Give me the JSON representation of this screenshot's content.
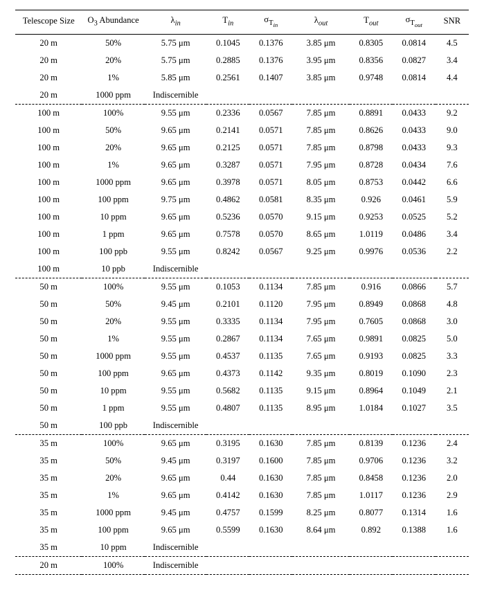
{
  "table": {
    "background_color": "#ffffff",
    "text_color": "#000000",
    "font_family": "Times New Roman",
    "font_size_pt": 10,
    "border_color": "#000000",
    "dashed_separator": true,
    "columns": [
      {
        "key": "tel",
        "label": "Telescope Size"
      },
      {
        "key": "o3",
        "label_html": "O<sub>3</sub> Abundance"
      },
      {
        "key": "lin",
        "label_html": "λ<sub><i>in</i></sub>"
      },
      {
        "key": "tin",
        "label_html": "T<sub><i>in</i></sub>"
      },
      {
        "key": "stin",
        "label_html": "σ<sub>T<sub><i>in</i></sub></sub>"
      },
      {
        "key": "lout",
        "label_html": "λ<sub><i>out</i></sub>"
      },
      {
        "key": "tout",
        "label_html": "T<sub><i>out</i></sub>"
      },
      {
        "key": "stout",
        "label_html": "σ<sub>T<sub><i>out</i></sub></sub>"
      },
      {
        "key": "snr",
        "label": "SNR"
      }
    ],
    "groups": [
      {
        "rows": [
          {
            "tel": "20 m",
            "o3": "50%",
            "lin": "5.75 μm",
            "tin": "0.1045",
            "stin": "0.1376",
            "lout": "3.85 μm",
            "tout": "0.8305",
            "stout": "0.0814",
            "snr": "4.5"
          },
          {
            "tel": "20 m",
            "o3": "20%",
            "lin": "5.75 μm",
            "tin": "0.2885",
            "stin": "0.1376",
            "lout": "3.95 μm",
            "tout": "0.8356",
            "stout": "0.0827",
            "snr": "3.4"
          },
          {
            "tel": "20 m",
            "o3": "1%",
            "lin": "5.85 μm",
            "tin": "0.2561",
            "stin": "0.1407",
            "lout": "3.85 μm",
            "tout": "0.9748",
            "stout": "0.0814",
            "snr": "4.4"
          },
          {
            "tel": "20 m",
            "o3": "1000 ppm",
            "lin": "Indiscernible",
            "tin": "",
            "stin": "",
            "lout": "",
            "tout": "",
            "stout": "",
            "snr": ""
          }
        ]
      },
      {
        "rows": [
          {
            "tel": "100 m",
            "o3": "100%",
            "lin": "9.55 μm",
            "tin": "0.2336",
            "stin": "0.0567",
            "lout": "7.85 μm",
            "tout": "0.8891",
            "stout": "0.0433",
            "snr": "9.2"
          },
          {
            "tel": "100 m",
            "o3": "50%",
            "lin": "9.65 μm",
            "tin": "0.2141",
            "stin": "0.0571",
            "lout": "7.85 μm",
            "tout": "0.8626",
            "stout": "0.0433",
            "snr": "9.0"
          },
          {
            "tel": "100 m",
            "o3": "20%",
            "lin": "9.65 μm",
            "tin": "0.2125",
            "stin": "0.0571",
            "lout": "7.85 μm",
            "tout": "0.8798",
            "stout": "0.0433",
            "snr": "9.3"
          },
          {
            "tel": "100 m",
            "o3": "1%",
            "lin": "9.65 μm",
            "tin": "0.3287",
            "stin": "0.0571",
            "lout": "7.95 μm",
            "tout": "0.8728",
            "stout": "0.0434",
            "snr": "7.6"
          },
          {
            "tel": "100 m",
            "o3": "1000 ppm",
            "lin": "9.65 μm",
            "tin": "0.3978",
            "stin": "0.0571",
            "lout": "8.05 μm",
            "tout": "0.8753",
            "stout": "0.0442",
            "snr": "6.6"
          },
          {
            "tel": "100 m",
            "o3": "100 ppm",
            "lin": "9.75 μm",
            "tin": "0.4862",
            "stin": "0.0581",
            "lout": "8.35 μm",
            "tout": "0.926",
            "stout": "0.0461",
            "snr": "5.9"
          },
          {
            "tel": "100 m",
            "o3": "10 ppm",
            "lin": "9.65 μm",
            "tin": "0.5236",
            "stin": "0.0570",
            "lout": "9.15 μm",
            "tout": "0.9253",
            "stout": "0.0525",
            "snr": "5.2"
          },
          {
            "tel": "100 m",
            "o3": "1 ppm",
            "lin": "9.65 μm",
            "tin": "0.7578",
            "stin": "0.0570",
            "lout": "8.65 μm",
            "tout": "1.0119",
            "stout": "0.0486",
            "snr": "3.4"
          },
          {
            "tel": "100 m",
            "o3": "100 ppb",
            "lin": "9.55 μm",
            "tin": "0.8242",
            "stin": "0.0567",
            "lout": "9.25 μm",
            "tout": "0.9976",
            "stout": "0.0536",
            "snr": "2.2"
          },
          {
            "tel": "100 m",
            "o3": "10 ppb",
            "lin": "Indiscernible",
            "tin": "",
            "stin": "",
            "lout": "",
            "tout": "",
            "stout": "",
            "snr": ""
          }
        ]
      },
      {
        "rows": [
          {
            "tel": "50 m",
            "o3": "100%",
            "lin": "9.55 μm",
            "tin": "0.1053",
            "stin": "0.1134",
            "lout": "7.85 μm",
            "tout": "0.916",
            "stout": "0.0866",
            "snr": "5.7"
          },
          {
            "tel": "50 m",
            "o3": "50%",
            "lin": "9.45 μm",
            "tin": "0.2101",
            "stin": "0.1120",
            "lout": "7.95 μm",
            "tout": "0.8949",
            "stout": "0.0868",
            "snr": "4.8"
          },
          {
            "tel": "50 m",
            "o3": "20%",
            "lin": "9.55 μm",
            "tin": "0.3335",
            "stin": "0.1134",
            "lout": "7.95 μm",
            "tout": "0.7605",
            "stout": "0.0868",
            "snr": "3.0"
          },
          {
            "tel": "50 m",
            "o3": "1%",
            "lin": "9.55 μm",
            "tin": "0.2867",
            "stin": "0.1134",
            "lout": "7.65 μm",
            "tout": "0.9891",
            "stout": "0.0825",
            "snr": "5.0"
          },
          {
            "tel": "50 m",
            "o3": "1000 ppm",
            "lin": "9.55 μm",
            "tin": "0.4537",
            "stin": "0.1135",
            "lout": "7.65 μm",
            "tout": "0.9193",
            "stout": "0.0825",
            "snr": "3.3"
          },
          {
            "tel": "50 m",
            "o3": "100 ppm",
            "lin": "9.65 μm",
            "tin": "0.4373",
            "stin": "0.1142",
            "lout": "9.35 μm",
            "tout": "0.8019",
            "stout": "0.1090",
            "snr": "2.3"
          },
          {
            "tel": "50 m",
            "o3": "10 ppm",
            "lin": "9.55 μm",
            "tin": "0.5682",
            "stin": "0.1135",
            "lout": "9.15 μm",
            "tout": "0.8964",
            "stout": "0.1049",
            "snr": "2.1"
          },
          {
            "tel": "50 m",
            "o3": "1 ppm",
            "lin": "9.55 μm",
            "tin": "0.4807",
            "stin": "0.1135",
            "lout": "8.95 μm",
            "tout": "1.0184",
            "stout": "0.1027",
            "snr": "3.5"
          },
          {
            "tel": "50 m",
            "o3": "100 ppb",
            "lin": "Indiscernible",
            "tin": "",
            "stin": "",
            "lout": "",
            "tout": "",
            "stout": "",
            "snr": ""
          }
        ]
      },
      {
        "rows": [
          {
            "tel": "35 m",
            "o3": "100%",
            "lin": "9.65 μm",
            "tin": "0.3195",
            "stin": "0.1630",
            "lout": "7.85 μm",
            "tout": "0.8139",
            "stout": "0.1236",
            "snr": "2.4"
          },
          {
            "tel": "35 m",
            "o3": "50%",
            "lin": "9.45 μm",
            "tin": "0.3197",
            "stin": "0.1600",
            "lout": "7.85 μm",
            "tout": "0.9706",
            "stout": "0.1236",
            "snr": "3.2"
          },
          {
            "tel": "35 m",
            "o3": "20%",
            "lin": "9.65 μm",
            "tin": "0.44",
            "stin": "0.1630",
            "lout": "7.85 μm",
            "tout": "0.8458",
            "stout": "0.1236",
            "snr": "2.0"
          },
          {
            "tel": "35 m",
            "o3": "1%",
            "lin": "9.65 μm",
            "tin": "0.4142",
            "stin": "0.1630",
            "lout": "7.85 μm",
            "tout": "1.0117",
            "stout": "0.1236",
            "snr": "2.9"
          },
          {
            "tel": "35 m",
            "o3": "1000 ppm",
            "lin": "9.45 μm",
            "tin": "0.4757",
            "stin": "0.1599",
            "lout": "8.25 μm",
            "tout": "0.8077",
            "stout": "0.1314",
            "snr": "1.6"
          },
          {
            "tel": "35 m",
            "o3": "100 ppm",
            "lin": "9.65 μm",
            "tin": "0.5599",
            "stin": "0.1630",
            "lout": "8.64 μm",
            "tout": "0.892",
            "stout": "0.1388",
            "snr": "1.6"
          },
          {
            "tel": "35 m",
            "o3": "10 ppm",
            "lin": "Indiscernible",
            "tin": "",
            "stin": "",
            "lout": "",
            "tout": "",
            "stout": "",
            "snr": ""
          }
        ]
      },
      {
        "rows": [
          {
            "tel": "20 m",
            "o3": "100%",
            "lin": "Indiscernible",
            "tin": "",
            "stin": "",
            "lout": "",
            "tout": "",
            "stout": "",
            "snr": ""
          }
        ]
      }
    ]
  }
}
